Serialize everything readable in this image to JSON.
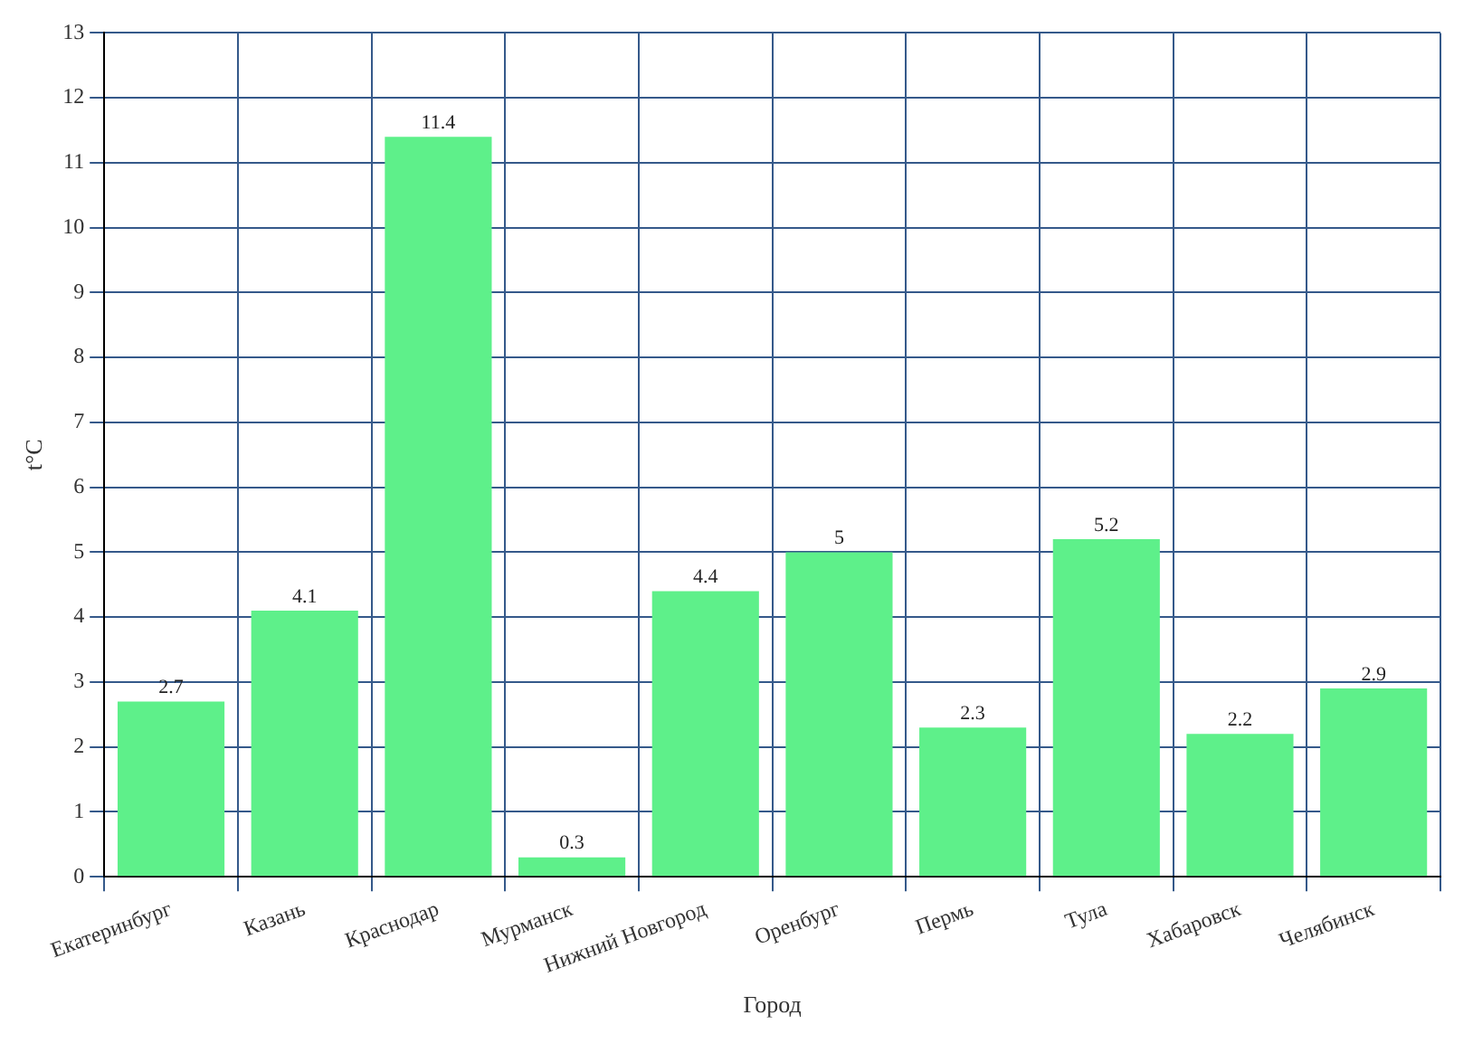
{
  "chart_data": {
    "type": "bar",
    "xlabel": "Город",
    "ylabel": "t°C",
    "categories": [
      "Екатеринбург",
      "Казань",
      "Краснодар",
      "Мурманск",
      "Нижний Новгород",
      "Оренбург",
      "Пермь",
      "Тула",
      "Хабаровск",
      "Челябинск"
    ],
    "values": [
      2.7,
      4.1,
      11.4,
      0.3,
      4.4,
      5,
      2.3,
      5.2,
      2.2,
      2.9
    ],
    "color": "#5ef08a",
    "ylim": [
      0,
      13
    ],
    "yticks": [
      0,
      1,
      2,
      3,
      4,
      5,
      6,
      7,
      8,
      9,
      10,
      11,
      12,
      13
    ],
    "grid": true,
    "data_labels": true
  }
}
